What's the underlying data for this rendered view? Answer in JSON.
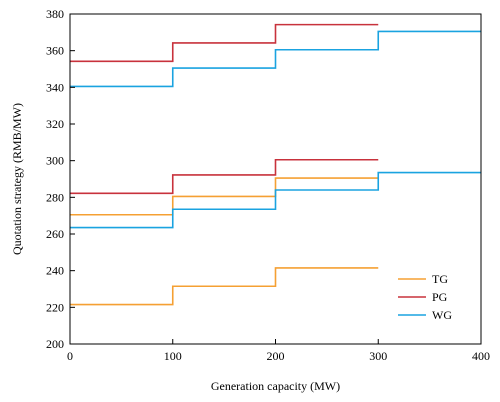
{
  "chart_data": {
    "type": "line",
    "step": "post",
    "title": "",
    "xlabel": "Generation capacity (MW)",
    "ylabel": "Quotation strategy (RMB/MW)",
    "xlim": [
      0,
      400
    ],
    "ylim": [
      200,
      380
    ],
    "xticks": [
      0,
      100,
      200,
      300,
      400
    ],
    "yticks": [
      200,
      220,
      240,
      260,
      280,
      300,
      320,
      340,
      360,
      380
    ],
    "grid": false,
    "legend_position": "bottom-right",
    "legend": [
      "TG",
      "PG",
      "WG"
    ],
    "series": [
      {
        "name": "TG",
        "color": "#f5a033",
        "x": [
          0,
          100,
          200,
          300
        ],
        "y": [
          221.5,
          231.5,
          241.5,
          241.5
        ]
      },
      {
        "name": "TG",
        "color": "#f5a033",
        "x": [
          0,
          100,
          200,
          300
        ],
        "y": [
          270.5,
          280.5,
          290.5,
          290.5
        ]
      },
      {
        "name": "PG",
        "color": "#c8323c",
        "x": [
          0,
          100,
          200,
          300
        ],
        "y": [
          354.2,
          364.2,
          374.2,
          374.2
        ]
      },
      {
        "name": "PG",
        "color": "#c8323c",
        "x": [
          0,
          100,
          200,
          300
        ],
        "y": [
          282.2,
          292.2,
          300.5,
          300.5
        ]
      },
      {
        "name": "WG",
        "color": "#1aa3e0",
        "x": [
          0,
          100,
          200,
          300,
          400
        ],
        "y": [
          340.5,
          350.5,
          360.5,
          370.5,
          370.5
        ]
      },
      {
        "name": "WG",
        "color": "#1aa3e0",
        "x": [
          0,
          100,
          200,
          300,
          400
        ],
        "y": [
          263.5,
          273.5,
          284,
          293.5,
          293.5
        ]
      }
    ]
  }
}
